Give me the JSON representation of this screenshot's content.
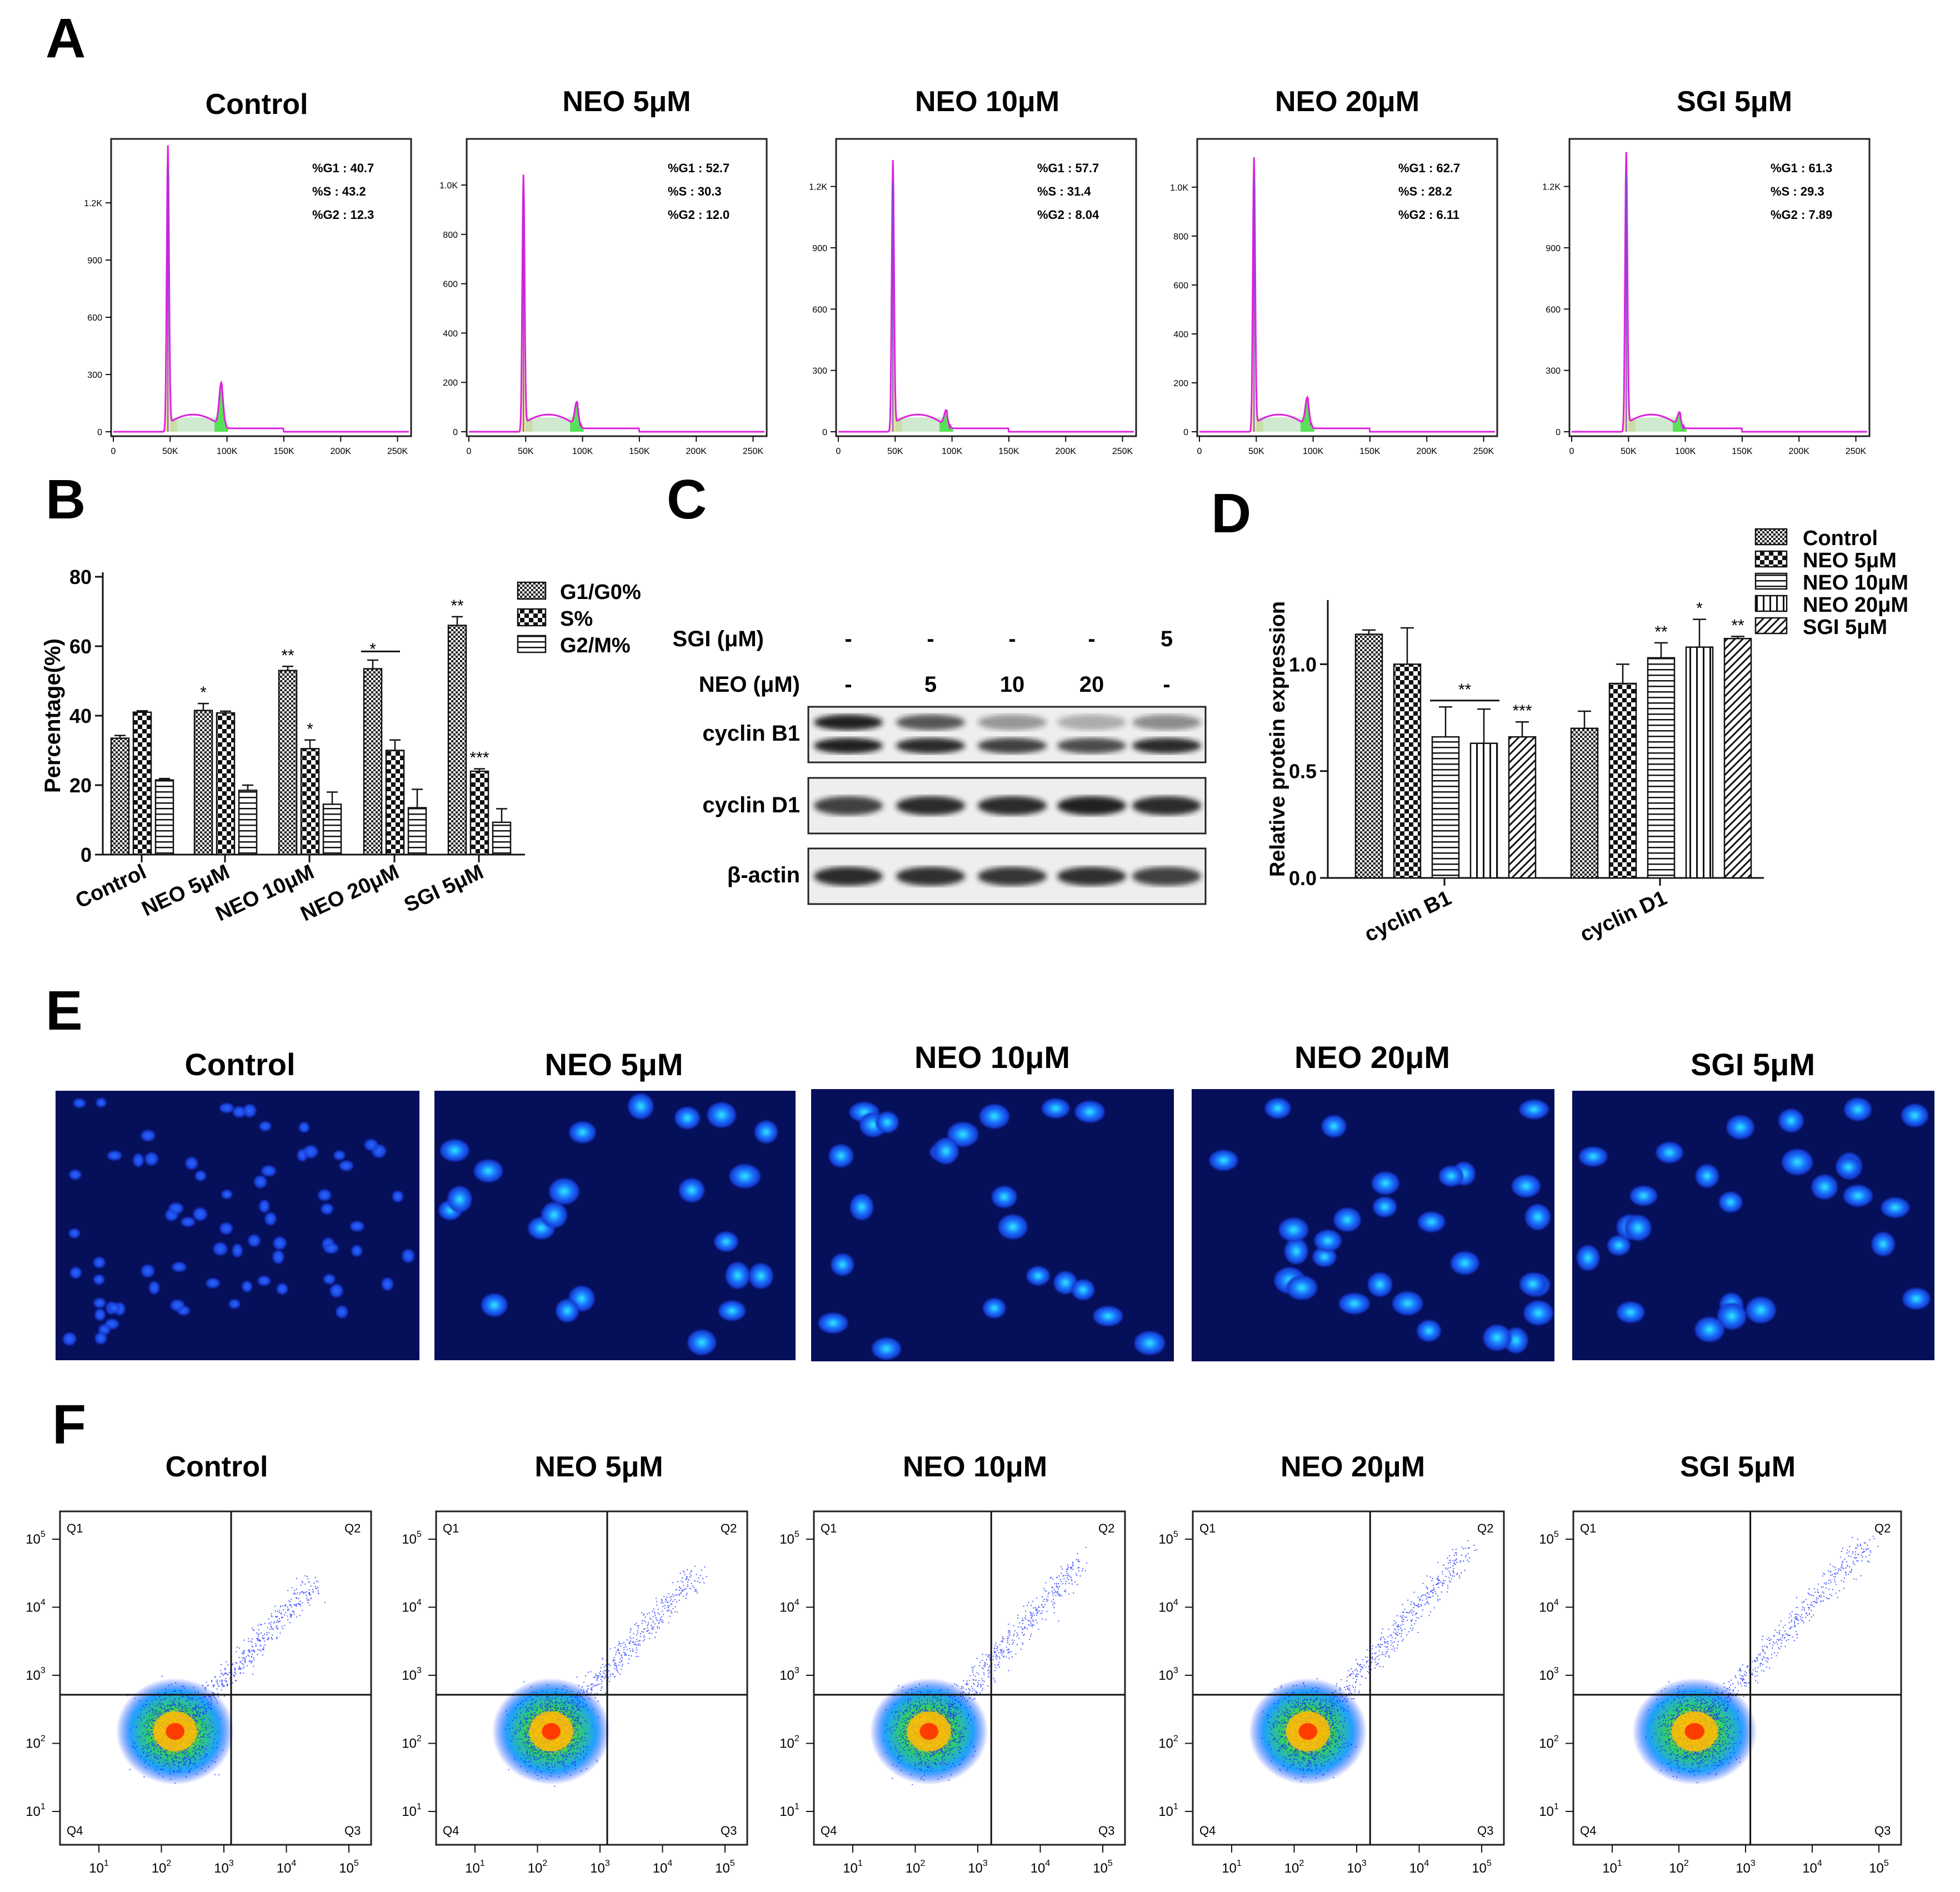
{
  "panels": {
    "A": "A",
    "B": "B",
    "C": "C",
    "D": "D",
    "E": "E",
    "F": "F"
  },
  "colors": {
    "histogram": "#e020e0",
    "g1_fill": "#ede29a",
    "s_fill": "#a8d8a8",
    "g2_fill": "#58e058",
    "dna_line": "#7050d0",
    "nucleus_bg": "#050f5a",
    "nucleus": "#1a50ff",
    "quad_line": "#111111"
  },
  "groups": [
    "Control",
    "NEO 5μM",
    "NEO 10μM",
    "NEO 20μM",
    "SGI 5μM"
  ],
  "flow_cycle": {
    "x_ticks": [
      "0",
      "50K",
      "100K",
      "150K",
      "200K",
      "250K"
    ],
    "stat_labels": [
      "%G1",
      "%S",
      "%G2"
    ],
    "plots": [
      {
        "title": "Control",
        "g1": "40.7",
        "s": "43.2",
        "g2": "12.3",
        "y_ticks": [
          "0",
          "300",
          "600",
          "900",
          "1.2K"
        ],
        "y_max": 1500,
        "peak_g1": 1460,
        "peak_g2": 230
      },
      {
        "title": "NEO 5μM",
        "g1": "52.7",
        "s": "30.3",
        "g2": "12.0",
        "y_ticks": [
          "0",
          "200",
          "400",
          "600",
          "800",
          "1.0K"
        ],
        "y_max": 1160,
        "peak_g1": 1010,
        "peak_g2": 100
      },
      {
        "title": "NEO 10μM",
        "g1": "57.7",
        "s": "31.4",
        "g2": "8.04",
        "y_ticks": [
          "0",
          "300",
          "600",
          "900",
          "1.2K"
        ],
        "y_max": 1400,
        "peak_g1": 1290,
        "peak_g2": 80
      },
      {
        "title": "NEO 20μM",
        "g1": "62.7",
        "s": "28.2",
        "g2": "6.11",
        "y_ticks": [
          "0",
          "200",
          "400",
          "600",
          "800",
          "1.0K"
        ],
        "y_max": 1170,
        "peak_g1": 1090,
        "peak_g2": 120
      },
      {
        "title": "SGI 5μM",
        "g1": "61.3",
        "s": "29.3",
        "g2": "7.89",
        "y_ticks": [
          "0",
          "300",
          "600",
          "900",
          "1.2K"
        ],
        "y_max": 1400,
        "peak_g1": 1330,
        "peak_g2": 70
      }
    ]
  },
  "chart_data": [
    {
      "type": "bar",
      "panel": "B",
      "categories": [
        "Control",
        "NEO 5μM",
        "NEO 10μM",
        "NEO 20μM",
        "SGI 5μM"
      ],
      "series": [
        {
          "name": "G1/G0%",
          "values": [
            33.5,
            41.5,
            53,
            53.5,
            66
          ],
          "errors": [
            0.8,
            2,
            1.2,
            2.5,
            2.5
          ]
        },
        {
          "name": "S%",
          "values": [
            41,
            40.8,
            30.5,
            30,
            24
          ],
          "errors": [
            0.4,
            0.5,
            2.5,
            3,
            0.7
          ]
        },
        {
          "name": "G2/M%",
          "values": [
            21.5,
            18.5,
            14.5,
            13.5,
            9.3
          ],
          "errors": [
            0.4,
            1.5,
            3.5,
            5.3,
            3.9
          ]
        }
      ],
      "annotations": [
        {
          "category": 1,
          "series": 0,
          "text": "*"
        },
        {
          "category": 2,
          "series": 0,
          "text": "**"
        },
        {
          "category": 2,
          "series": 1,
          "text": "*"
        },
        {
          "category": 3,
          "series": 0,
          "text": "*"
        },
        {
          "category": 4,
          "series": 0,
          "text": "**"
        },
        {
          "category": 4,
          "series": 1,
          "text": "***"
        }
      ],
      "ylabel": "Percentage(%)",
      "xlabel": "",
      "ylim": [
        0,
        80
      ],
      "yticks": [
        "0",
        "20",
        "40",
        "60",
        "80"
      ],
      "legend": "top-right"
    },
    {
      "type": "bar",
      "panel": "D",
      "categories": [
        "cyclin B1",
        "cyclin D1"
      ],
      "series": [
        {
          "name": "Control",
          "values": [
            1.14,
            0.7
          ],
          "errors": [
            0.02,
            0.08
          ]
        },
        {
          "name": "NEO 5μM",
          "values": [
            1.0,
            0.91
          ],
          "errors": [
            0.17,
            0.09
          ]
        },
        {
          "name": "NEO 10μM",
          "values": [
            0.66,
            1.03
          ],
          "errors": [
            0.14,
            0.07
          ]
        },
        {
          "name": "NEO 20μM",
          "values": [
            0.63,
            1.08
          ],
          "errors": [
            0.16,
            0.13
          ]
        },
        {
          "name": "SGI 5μM",
          "values": [
            0.66,
            1.12
          ],
          "errors": [
            0.07,
            0.01
          ]
        }
      ],
      "annotations": [
        {
          "category": 0,
          "series": 4,
          "text": "***"
        },
        {
          "category": 1,
          "series": 2,
          "text": "**"
        },
        {
          "category": 1,
          "series": 3,
          "text": "*"
        },
        {
          "category": 1,
          "series": 4,
          "text": "**"
        }
      ],
      "bracket_label": "**",
      "bracket_label_B": "*",
      "ylabel": "Relative protein expression",
      "xlabel": "",
      "ylim": [
        0,
        1.3
      ],
      "yticks": [
        "0.0",
        "0.5",
        "1.0"
      ],
      "legend": "top-right"
    }
  ],
  "western": {
    "sgi_label": "SGI (μM)",
    "neo_label": "NEO (μM)",
    "sgi_values": [
      "-",
      "-",
      "-",
      "-",
      "5"
    ],
    "neo_values": [
      "-",
      "5",
      "10",
      "20",
      "-"
    ],
    "rows": [
      "cyclin B1",
      "cyclin D1",
      "β-actin"
    ]
  },
  "apoptosis": {
    "quadrants": [
      "Q1",
      "Q2",
      "Q3",
      "Q4"
    ],
    "x_ticks": [
      "1",
      "2",
      "3",
      "4",
      "5"
    ],
    "y_ticks": [
      "1",
      "2",
      "3",
      "4",
      "5"
    ],
    "tick_base": "10"
  }
}
